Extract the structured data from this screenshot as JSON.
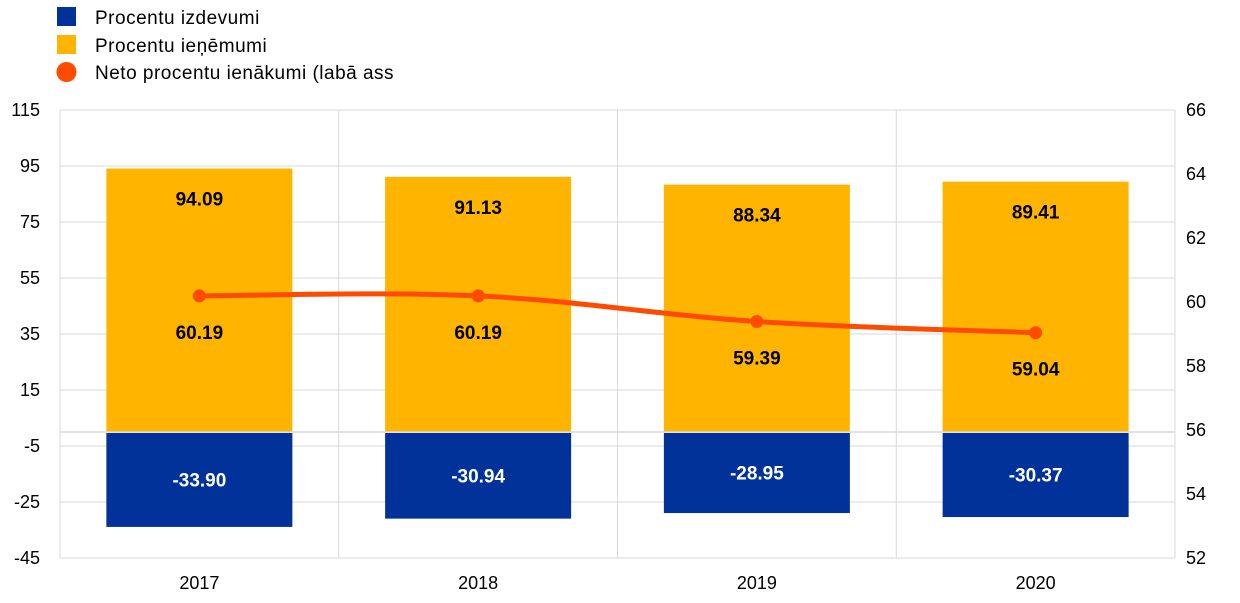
{
  "chart_data": {
    "type": "bar",
    "categories": [
      "2017",
      "2018",
      "2019",
      "2020"
    ],
    "series": [
      {
        "name": "Procentu izdevumi",
        "type": "bar",
        "axis": "left",
        "color": "#003299",
        "values": [
          -33.9,
          -30.94,
          -28.95,
          -30.37
        ],
        "labels": [
          "-33.90",
          "-30.94",
          "-28.95",
          "-30.37"
        ]
      },
      {
        "name": "Procentu ieņēmumi",
        "type": "bar",
        "axis": "left",
        "color": "#FFB400",
        "values": [
          94.09,
          91.13,
          88.34,
          89.41
        ],
        "labels": [
          "94.09",
          "91.13",
          "88.34",
          "89.41"
        ]
      },
      {
        "name": "Neto procentu ienākumi (labā ass",
        "type": "line",
        "axis": "right",
        "color": "#FF4B00",
        "values": [
          60.19,
          60.19,
          59.39,
          59.04
        ],
        "labels": [
          "60.19",
          "60.19",
          "59.39",
          "59.04"
        ]
      }
    ],
    "y_left": {
      "min": -45,
      "max": 115,
      "step": 20,
      "ticks": [
        "115",
        "95",
        "75",
        "55",
        "35",
        "15",
        "-5",
        "-25",
        "-45"
      ]
    },
    "y_right": {
      "min": 52,
      "max": 66,
      "step": 2,
      "ticks": [
        "66",
        "64",
        "62",
        "60",
        "58",
        "56",
        "54",
        "52"
      ]
    },
    "grid": true,
    "legend_position": "top-left",
    "colors": {
      "grid": "#D9D9D9",
      "expense_label": "#FFFFFF",
      "income_label": "#000000",
      "net_label": "#000000"
    }
  }
}
